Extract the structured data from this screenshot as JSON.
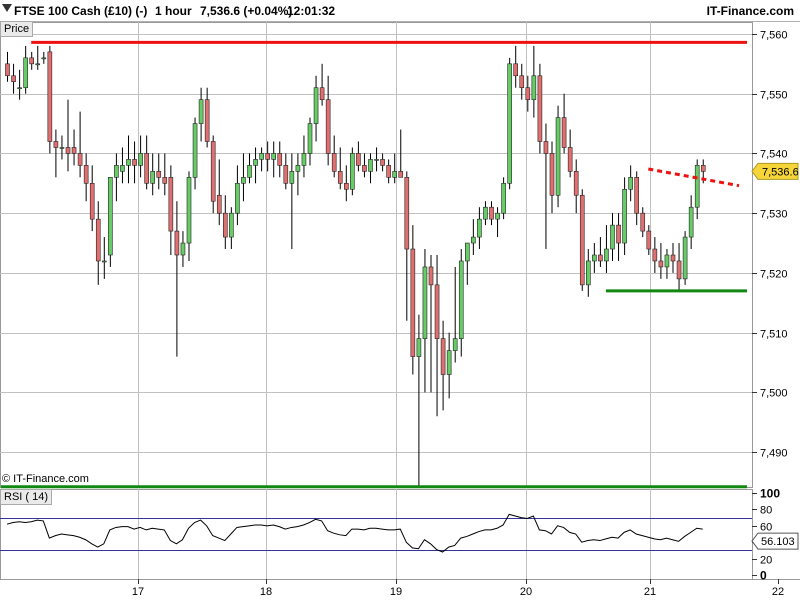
{
  "header": {
    "instrument": "FTSE 100 Cash (£10) (-)",
    "timeframe": "1 hour",
    "price": "7,536.6 (+0.04%)",
    "time": "12:01:32",
    "brand": "IT-Finance.com"
  },
  "panels": {
    "price_label": "Price",
    "rsi_label": "RSI ( 14)",
    "copyright": "© IT-Finance.com"
  },
  "price_badge": "7,536.6",
  "rsi_badge": "56.103",
  "colors": {
    "up": "#66cc66",
    "down": "#e07070",
    "wick": "#000000",
    "resistance": "#ee1111",
    "support": "#118811",
    "rsi_line": "#000000",
    "rsi_bounds": "#333399",
    "grid": "#c0c0c0"
  },
  "chart_data": [
    {
      "type": "candlestick",
      "title": "FTSE 100 Cash (£10) (-)",
      "interval": "1 hour",
      "ylim": [
        7484,
        7562
      ],
      "yticks": [
        7490,
        7500,
        7510,
        7520,
        7530,
        7540,
        7550,
        7560
      ],
      "ytick_labels": [
        "7,490",
        "7,500",
        "7,510",
        "7,520",
        "7,530",
        "7,540",
        "7,550",
        "7,560"
      ],
      "xticks": [
        "17",
        "18",
        "19",
        "20",
        "21",
        "22"
      ],
      "candles": [
        [
          7555,
          7557,
          7552,
          7553
        ],
        [
          7553,
          7555,
          7550,
          7552
        ],
        [
          7551,
          7554,
          7549,
          7551
        ],
        [
          7551,
          7558,
          7550,
          7556
        ],
        [
          7556,
          7557,
          7554,
          7555
        ],
        [
          7555,
          7558,
          7554,
          7555
        ],
        [
          7556,
          7557,
          7555,
          7556
        ],
        [
          7557,
          7558,
          7540,
          7542
        ],
        [
          7542,
          7544,
          7536,
          7541
        ],
        [
          7541,
          7543,
          7539,
          7541
        ],
        [
          7541,
          7549,
          7537,
          7540
        ],
        [
          7541,
          7544,
          7538,
          7540
        ],
        [
          7540,
          7547,
          7536,
          7538
        ],
        [
          7538,
          7540,
          7532,
          7535
        ],
        [
          7535,
          7538,
          7527,
          7529
        ],
        [
          7529,
          7532,
          7518,
          7522
        ],
        [
          7522,
          7526,
          7519,
          7522
        ],
        [
          7523,
          7536,
          7521,
          7536
        ],
        [
          7536,
          7540,
          7532,
          7538
        ],
        [
          7537,
          7541,
          7535,
          7538
        ],
        [
          7538,
          7543,
          7535,
          7539
        ],
        [
          7539,
          7542,
          7535,
          7538
        ],
        [
          7538,
          7543,
          7536,
          7540
        ],
        [
          7540,
          7543,
          7534,
          7535
        ],
        [
          7535,
          7540,
          7533,
          7537
        ],
        [
          7537,
          7540,
          7534,
          7536
        ],
        [
          7536,
          7540,
          7533,
          7535
        ],
        [
          7536,
          7538,
          7523,
          7527
        ],
        [
          7527,
          7532,
          7506,
          7523
        ],
        [
          7523,
          7527,
          7521,
          7525
        ],
        [
          7525,
          7537,
          7522,
          7536
        ],
        [
          7536,
          7546,
          7534,
          7545
        ],
        [
          7545,
          7551,
          7542,
          7549
        ],
        [
          7549,
          7551,
          7541,
          7542
        ],
        [
          7542,
          7543,
          7530,
          7532
        ],
        [
          7533,
          7539,
          7528,
          7530
        ],
        [
          7530,
          7533,
          7524,
          7526
        ],
        [
          7526,
          7531,
          7524,
          7530
        ],
        [
          7530,
          7538,
          7528,
          7535
        ],
        [
          7535,
          7540,
          7532,
          7536
        ],
        [
          7536,
          7540,
          7535,
          7538
        ],
        [
          7538,
          7541,
          7535,
          7539
        ],
        [
          7539,
          7541,
          7537,
          7540
        ],
        [
          7540,
          7542,
          7537,
          7539
        ],
        [
          7539,
          7542,
          7536,
          7540
        ],
        [
          7540,
          7542,
          7536,
          7538
        ],
        [
          7538,
          7540,
          7534,
          7535
        ],
        [
          7535,
          7540,
          7524,
          7537
        ],
        [
          7537,
          7540,
          7533,
          7538
        ],
        [
          7538,
          7543,
          7536,
          7540
        ],
        [
          7540,
          7546,
          7538,
          7545
        ],
        [
          7545,
          7553,
          7542,
          7551
        ],
        [
          7551,
          7555,
          7548,
          7549
        ],
        [
          7549,
          7553,
          7538,
          7540
        ],
        [
          7540,
          7543,
          7536,
          7537
        ],
        [
          7537,
          7541,
          7534,
          7535
        ],
        [
          7535,
          7538,
          7532,
          7534
        ],
        [
          7534,
          7541,
          7533,
          7540
        ],
        [
          7540,
          7542,
          7537,
          7538
        ],
        [
          7538,
          7540,
          7536,
          7537
        ],
        [
          7537,
          7540,
          7535,
          7539
        ],
        [
          7539,
          7541,
          7537,
          7539
        ],
        [
          7539,
          7540,
          7537,
          7538
        ],
        [
          7538,
          7539,
          7535,
          7536
        ],
        [
          7536,
          7540,
          7535,
          7537
        ],
        [
          7537,
          7544,
          7536,
          7536
        ],
        [
          7536,
          7537,
          7512,
          7524
        ],
        [
          7524,
          7528,
          7503,
          7506
        ],
        [
          7506,
          7513,
          7484,
          7509
        ],
        [
          7509,
          7524,
          7500,
          7521
        ],
        [
          7521,
          7523,
          7500,
          7518
        ],
        [
          7518,
          7523,
          7496,
          7509
        ],
        [
          7509,
          7512,
          7497,
          7503
        ],
        [
          7503,
          7510,
          7499,
          7507
        ],
        [
          7507,
          7521,
          7505,
          7509
        ],
        [
          7509,
          7524,
          7506,
          7522
        ],
        [
          7522,
          7525,
          7518,
          7525
        ],
        [
          7525,
          7529,
          7523,
          7526
        ],
        [
          7526,
          7531,
          7524,
          7529
        ],
        [
          7529,
          7532,
          7528,
          7531
        ],
        [
          7531,
          7532,
          7528,
          7529
        ],
        [
          7529,
          7531,
          7526,
          7530
        ],
        [
          7530,
          7536,
          7529,
          7535
        ],
        [
          7535,
          7556,
          7534,
          7555
        ],
        [
          7555,
          7558,
          7551,
          7553
        ],
        [
          7553,
          7555,
          7549,
          7551
        ],
        [
          7551,
          7553,
          7547,
          7549
        ],
        [
          7549,
          7558,
          7546,
          7553
        ],
        [
          7553,
          7555,
          7540,
          7542
        ],
        [
          7542,
          7545,
          7524,
          7540
        ],
        [
          7540,
          7542,
          7530,
          7533
        ],
        [
          7533,
          7548,
          7531,
          7546
        ],
        [
          7546,
          7550,
          7540,
          7541
        ],
        [
          7541,
          7544,
          7536,
          7537
        ],
        [
          7537,
          7539,
          7530,
          7533
        ],
        [
          7533,
          7534,
          7517,
          7518
        ],
        [
          7518,
          7524,
          7516,
          7522
        ],
        [
          7522,
          7525,
          7520,
          7523
        ],
        [
          7523,
          7526,
          7521,
          7522
        ],
        [
          7522,
          7528,
          7520,
          7524
        ],
        [
          7524,
          7530,
          7522,
          7528
        ],
        [
          7528,
          7530,
          7522,
          7525
        ],
        [
          7525,
          7536,
          7523,
          7534
        ],
        [
          7534,
          7538,
          7532,
          7536
        ],
        [
          7536,
          7537,
          7528,
          7530
        ],
        [
          7530,
          7531,
          7526,
          7527
        ],
        [
          7527,
          7528,
          7523,
          7524
        ],
        [
          7524,
          7526,
          7520,
          7522
        ],
        [
          7522,
          7525,
          7519,
          7521
        ],
        [
          7521,
          7524,
          7519,
          7523
        ],
        [
          7523,
          7525,
          7520,
          7522
        ],
        [
          7522,
          7525,
          7517,
          7519
        ],
        [
          7519,
          7527,
          7518,
          7526
        ],
        [
          7526,
          7533,
          7524,
          7531
        ],
        [
          7531,
          7539,
          7529,
          7538
        ],
        [
          7538,
          7539,
          7535,
          7537
        ]
      ],
      "lines": [
        {
          "style": "solid",
          "color": "#ee1111",
          "y": 7558.6,
          "from_candle": 4,
          "to_candle": 999
        },
        {
          "style": "solid",
          "color": "#118811",
          "y": 7517,
          "from_candle": 99,
          "to_candle": 999
        },
        {
          "style": "solid",
          "color": "#118811",
          "y": 7484.2,
          "from_candle": -999,
          "to_candle": 999
        },
        {
          "style": "dashed",
          "color": "#ee1111",
          "y1": 7537.4,
          "y2": 7534.6,
          "from_candle": 106,
          "to_candle": 121
        }
      ]
    },
    {
      "type": "line",
      "title": "RSI ( 14)",
      "ylim": [
        -5,
        105
      ],
      "yticks": [
        0,
        20,
        40,
        60,
        80,
        100
      ],
      "bounds": [
        70,
        30
      ],
      "series": [
        {
          "name": "RSI ( 14)",
          "values": [
            62,
            64,
            65,
            64,
            65,
            67,
            66,
            45,
            48,
            50,
            49,
            48,
            46,
            43,
            38,
            34,
            38,
            55,
            58,
            59,
            59,
            56,
            58,
            55,
            57,
            56,
            55,
            42,
            38,
            43,
            57,
            64,
            67,
            60,
            48,
            45,
            42,
            50,
            58,
            59,
            60,
            61,
            61,
            60,
            61,
            59,
            56,
            58,
            59,
            61,
            64,
            68,
            66,
            54,
            51,
            49,
            48,
            56,
            56,
            55,
            57,
            57,
            56,
            55,
            55,
            56,
            40,
            33,
            32,
            43,
            38,
            31,
            28,
            34,
            36,
            45,
            47,
            50,
            53,
            55,
            55,
            57,
            61,
            74,
            72,
            70,
            69,
            72,
            55,
            54,
            50,
            60,
            58,
            52,
            50,
            40,
            42,
            43,
            42,
            44,
            46,
            45,
            52,
            55,
            50,
            48,
            46,
            44,
            43,
            45,
            43,
            41,
            47,
            52,
            57,
            56
          ]
        }
      ]
    }
  ]
}
